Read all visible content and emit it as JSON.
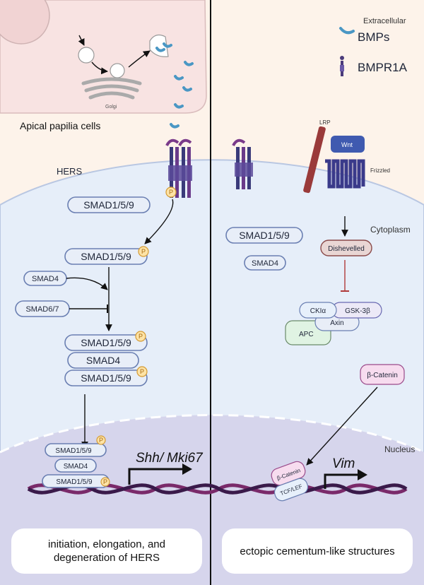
{
  "labels": {
    "extracellular": "Extracellular",
    "bmps": "BMPs",
    "bmpr1a": "BMPR1A",
    "golgi": "Golgi",
    "apical": "Apical papilia cells",
    "hers": "HERS",
    "lrp": "LRP",
    "wnt": "Wnt",
    "frizzled": "Frizzled",
    "cytoplasm": "Cytoplasm",
    "nucleus": "Nucleus",
    "smad159": "SMAD1/5/9",
    "smad4": "SMAD4",
    "smad67": "SMAD6/7",
    "p": "P",
    "dishevelled": "Dishevelled",
    "ckia": "CKIα",
    "gsk3b": "GSK-3β",
    "axin": "Axin",
    "apc": "APC",
    "bcatenin": "β-Catenin",
    "tcflef": "TCF/LEF",
    "shh": "Shh",
    "slash": "/",
    "mki67": "Mki67",
    "vim": "Vim"
  },
  "outcomes": {
    "left_line1": "initiation, elongation, and",
    "left_line2": "degeneration of HERS",
    "right": "ectopic cementum-like structures"
  }
}
